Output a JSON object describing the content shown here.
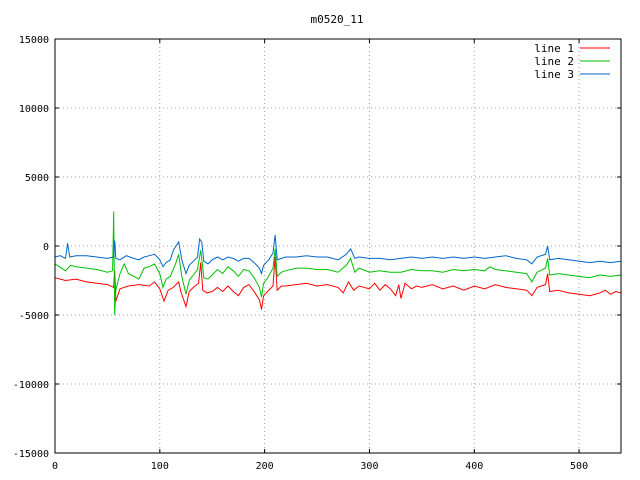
{
  "chart_data": {
    "type": "line",
    "title": "m0520_11",
    "xlabel": "",
    "ylabel": "",
    "xlim": [
      0,
      540
    ],
    "ylim": [
      -15000,
      15000
    ],
    "xticks": [
      0,
      100,
      200,
      300,
      400,
      500
    ],
    "yticks": [
      -15000,
      -10000,
      -5000,
      0,
      5000,
      10000,
      15000
    ],
    "grid": true,
    "legend": "top-right",
    "series": [
      {
        "name": "line 1",
        "color": "#ff0000",
        "points": [
          [
            0,
            -2300
          ],
          [
            10,
            -2500
          ],
          [
            20,
            -2400
          ],
          [
            30,
            -2600
          ],
          [
            40,
            -2700
          ],
          [
            50,
            -2800
          ],
          [
            56,
            -3000
          ],
          [
            57,
            -1800
          ],
          [
            58,
            -4000
          ],
          [
            62,
            -3100
          ],
          [
            70,
            -2900
          ],
          [
            80,
            -2800
          ],
          [
            90,
            -2900
          ],
          [
            95,
            -2600
          ],
          [
            100,
            -3100
          ],
          [
            104,
            -4000
          ],
          [
            108,
            -3200
          ],
          [
            113,
            -3000
          ],
          [
            118,
            -2600
          ],
          [
            120,
            -3300
          ],
          [
            125,
            -4400
          ],
          [
            128,
            -3300
          ],
          [
            132,
            -3000
          ],
          [
            137,
            -2700
          ],
          [
            139,
            -1200
          ],
          [
            141,
            -3200
          ],
          [
            145,
            -3400
          ],
          [
            150,
            -3300
          ],
          [
            155,
            -3000
          ],
          [
            160,
            -3300
          ],
          [
            165,
            -2900
          ],
          [
            170,
            -3300
          ],
          [
            175,
            -3600
          ],
          [
            180,
            -3000
          ],
          [
            185,
            -2800
          ],
          [
            190,
            -3300
          ],
          [
            195,
            -3900
          ],
          [
            197,
            -4600
          ],
          [
            199,
            -3600
          ],
          [
            204,
            -3200
          ],
          [
            208,
            -2900
          ],
          [
            210,
            -800
          ],
          [
            212,
            -3200
          ],
          [
            216,
            -2900
          ],
          [
            220,
            -2900
          ],
          [
            230,
            -2800
          ],
          [
            240,
            -2700
          ],
          [
            250,
            -2900
          ],
          [
            260,
            -2800
          ],
          [
            270,
            -3000
          ],
          [
            275,
            -3400
          ],
          [
            280,
            -2600
          ],
          [
            285,
            -3200
          ],
          [
            290,
            -2900
          ],
          [
            300,
            -3100
          ],
          [
            305,
            -2700
          ],
          [
            310,
            -3200
          ],
          [
            315,
            -2800
          ],
          [
            320,
            -3100
          ],
          [
            325,
            -3600
          ],
          [
            328,
            -2800
          ],
          [
            330,
            -3800
          ],
          [
            334,
            -2700
          ],
          [
            340,
            -3100
          ],
          [
            345,
            -2900
          ],
          [
            350,
            -3000
          ],
          [
            360,
            -2800
          ],
          [
            370,
            -3100
          ],
          [
            380,
            -2900
          ],
          [
            390,
            -3200
          ],
          [
            400,
            -2900
          ],
          [
            410,
            -3100
          ],
          [
            420,
            -2800
          ],
          [
            430,
            -3000
          ],
          [
            440,
            -3100
          ],
          [
            450,
            -3200
          ],
          [
            455,
            -3600
          ],
          [
            460,
            -3000
          ],
          [
            468,
            -2800
          ],
          [
            470,
            -2000
          ],
          [
            472,
            -3300
          ],
          [
            480,
            -3200
          ],
          [
            490,
            -3400
          ],
          [
            500,
            -3500
          ],
          [
            510,
            -3600
          ],
          [
            520,
            -3400
          ],
          [
            525,
            -3200
          ],
          [
            530,
            -3500
          ],
          [
            535,
            -3300
          ],
          [
            540,
            -3400
          ]
        ]
      },
      {
        "name": "line 2",
        "color": "#00c000",
        "points": [
          [
            0,
            -1300
          ],
          [
            10,
            -1800
          ],
          [
            15,
            -1400
          ],
          [
            20,
            -1500
          ],
          [
            30,
            -1600
          ],
          [
            40,
            -1700
          ],
          [
            50,
            -1900
          ],
          [
            55,
            -1800
          ],
          [
            56,
            2500
          ],
          [
            57,
            -5000
          ],
          [
            58,
            -3200
          ],
          [
            62,
            -2000
          ],
          [
            66,
            -1300
          ],
          [
            70,
            -2000
          ],
          [
            80,
            -2400
          ],
          [
            85,
            -1600
          ],
          [
            90,
            -1500
          ],
          [
            95,
            -1300
          ],
          [
            100,
            -2000
          ],
          [
            103,
            -3000
          ],
          [
            106,
            -2400
          ],
          [
            110,
            -2200
          ],
          [
            115,
            -1300
          ],
          [
            118,
            -600
          ],
          [
            121,
            -2200
          ],
          [
            125,
            -3500
          ],
          [
            128,
            -2500
          ],
          [
            132,
            -2100
          ],
          [
            136,
            -1700
          ],
          [
            139,
            -300
          ],
          [
            142,
            -2300
          ],
          [
            146,
            -2400
          ],
          [
            150,
            -2100
          ],
          [
            155,
            -1700
          ],
          [
            160,
            -2000
          ],
          [
            165,
            -1500
          ],
          [
            170,
            -1800
          ],
          [
            175,
            -2200
          ],
          [
            180,
            -1700
          ],
          [
            185,
            -1800
          ],
          [
            190,
            -2300
          ],
          [
            195,
            -3000
          ],
          [
            197,
            -3700
          ],
          [
            199,
            -2700
          ],
          [
            203,
            -2300
          ],
          [
            208,
            -1600
          ],
          [
            210,
            -200
          ],
          [
            212,
            -2200
          ],
          [
            216,
            -1900
          ],
          [
            220,
            -1800
          ],
          [
            230,
            -1600
          ],
          [
            240,
            -1600
          ],
          [
            250,
            -1700
          ],
          [
            260,
            -1700
          ],
          [
            270,
            -1900
          ],
          [
            278,
            -1400
          ],
          [
            282,
            -900
          ],
          [
            286,
            -1900
          ],
          [
            290,
            -1600
          ],
          [
            300,
            -1900
          ],
          [
            310,
            -1800
          ],
          [
            320,
            -1900
          ],
          [
            330,
            -1900
          ],
          [
            340,
            -1700
          ],
          [
            350,
            -1800
          ],
          [
            360,
            -1800
          ],
          [
            370,
            -1900
          ],
          [
            380,
            -1700
          ],
          [
            390,
            -1800
          ],
          [
            400,
            -1700
          ],
          [
            410,
            -1800
          ],
          [
            415,
            -1500
          ],
          [
            420,
            -1700
          ],
          [
            430,
            -1800
          ],
          [
            440,
            -1900
          ],
          [
            450,
            -2000
          ],
          [
            455,
            -2600
          ],
          [
            460,
            -1900
          ],
          [
            468,
            -1600
          ],
          [
            470,
            -900
          ],
          [
            472,
            -2100
          ],
          [
            480,
            -2000
          ],
          [
            490,
            -2100
          ],
          [
            500,
            -2200
          ],
          [
            510,
            -2300
          ],
          [
            520,
            -2100
          ],
          [
            530,
            -2200
          ],
          [
            540,
            -2100
          ]
        ]
      },
      {
        "name": "line 3",
        "color": "#0066cc",
        "points": [
          [
            0,
            -800
          ],
          [
            5,
            -700
          ],
          [
            10,
            -900
          ],
          [
            12,
            200
          ],
          [
            14,
            -800
          ],
          [
            20,
            -700
          ],
          [
            30,
            -700
          ],
          [
            40,
            -800
          ],
          [
            50,
            -900
          ],
          [
            56,
            -800
          ],
          [
            57,
            400
          ],
          [
            58,
            -900
          ],
          [
            62,
            -1000
          ],
          [
            68,
            -700
          ],
          [
            75,
            -900
          ],
          [
            80,
            -1000
          ],
          [
            85,
            -800
          ],
          [
            90,
            -700
          ],
          [
            95,
            -600
          ],
          [
            100,
            -1000
          ],
          [
            103,
            -1500
          ],
          [
            106,
            -1200
          ],
          [
            110,
            -1000
          ],
          [
            113,
            -300
          ],
          [
            118,
            300
          ],
          [
            121,
            -1000
          ],
          [
            125,
            -2000
          ],
          [
            128,
            -1400
          ],
          [
            132,
            -1100
          ],
          [
            136,
            -800
          ],
          [
            138,
            500
          ],
          [
            140,
            300
          ],
          [
            142,
            -1100
          ],
          [
            146,
            -1300
          ],
          [
            150,
            -1000
          ],
          [
            155,
            -800
          ],
          [
            160,
            -1000
          ],
          [
            165,
            -800
          ],
          [
            170,
            -900
          ],
          [
            175,
            -1100
          ],
          [
            180,
            -900
          ],
          [
            185,
            -900
          ],
          [
            190,
            -1200
          ],
          [
            195,
            -1600
          ],
          [
            197,
            -2000
          ],
          [
            199,
            -1400
          ],
          [
            204,
            -1000
          ],
          [
            208,
            -500
          ],
          [
            210,
            800
          ],
          [
            212,
            -1000
          ],
          [
            216,
            -900
          ],
          [
            220,
            -800
          ],
          [
            230,
            -800
          ],
          [
            240,
            -700
          ],
          [
            250,
            -800
          ],
          [
            260,
            -800
          ],
          [
            270,
            -1000
          ],
          [
            278,
            -600
          ],
          [
            282,
            -200
          ],
          [
            286,
            -900
          ],
          [
            290,
            -800
          ],
          [
            300,
            -900
          ],
          [
            310,
            -900
          ],
          [
            320,
            -1000
          ],
          [
            330,
            -900
          ],
          [
            340,
            -800
          ],
          [
            350,
            -900
          ],
          [
            360,
            -800
          ],
          [
            370,
            -900
          ],
          [
            380,
            -800
          ],
          [
            390,
            -900
          ],
          [
            400,
            -800
          ],
          [
            410,
            -900
          ],
          [
            420,
            -800
          ],
          [
            430,
            -700
          ],
          [
            440,
            -900
          ],
          [
            450,
            -1000
          ],
          [
            455,
            -1300
          ],
          [
            460,
            -800
          ],
          [
            468,
            -600
          ],
          [
            470,
            0
          ],
          [
            472,
            -1000
          ],
          [
            480,
            -900
          ],
          [
            490,
            -1000
          ],
          [
            500,
            -1100
          ],
          [
            510,
            -1200
          ],
          [
            520,
            -1100
          ],
          [
            530,
            -1200
          ],
          [
            540,
            -1100
          ]
        ]
      }
    ]
  }
}
